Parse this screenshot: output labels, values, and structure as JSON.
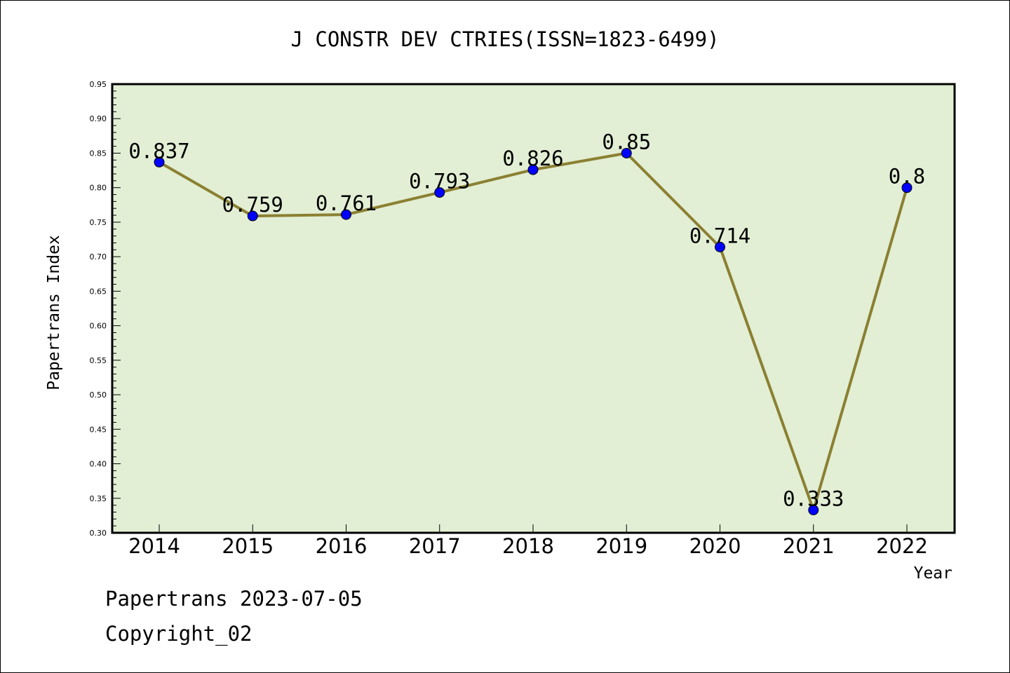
{
  "chart_data": {
    "type": "line",
    "title": "J CONSTR DEV CTRIES(ISSN=1823-6499)",
    "xlabel": "Year",
    "ylabel": "Papertrans Index",
    "categories": [
      "2014",
      "2015",
      "2016",
      "2017",
      "2018",
      "2019",
      "2020",
      "2021",
      "2022"
    ],
    "values": [
      0.837,
      0.759,
      0.761,
      0.793,
      0.826,
      0.85,
      0.714,
      0.333,
      0.8
    ],
    "data_labels": [
      "0.837",
      "0.759",
      "0.761",
      "0.793",
      "0.826",
      "0.85",
      "0.714",
      "0.333",
      "0.8"
    ],
    "ylim": [
      0.3,
      0.95
    ],
    "yticks": [
      "0.30",
      "0.35",
      "0.40",
      "0.45",
      "0.50",
      "0.55",
      "0.60",
      "0.65",
      "0.70",
      "0.75",
      "0.80",
      "0.85",
      "0.90",
      "0.95"
    ],
    "grid": false,
    "colors": {
      "plot_background": "#e2efd4",
      "line": "#8b8032",
      "marker": "#0000ff"
    }
  },
  "footer": {
    "source": "Papertrans 2023-07-05",
    "copyright": "Copyright_02"
  }
}
